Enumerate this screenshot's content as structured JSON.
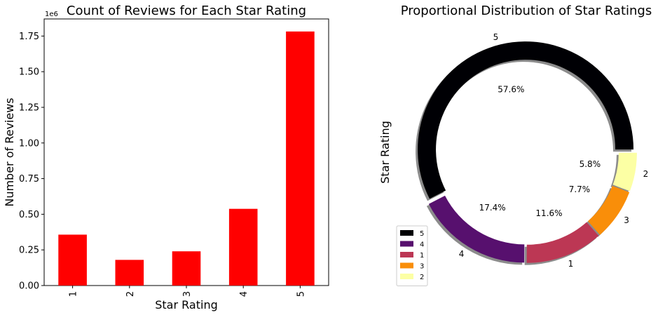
{
  "chart_data": [
    {
      "type": "bar",
      "title": "Count of Reviews for Each Star Rating",
      "xlabel": "Star Rating",
      "ylabel": "Number of Reviews",
      "y_offset_label": "1e6",
      "categories": [
        "1",
        "2",
        "3",
        "4",
        "5"
      ],
      "values": [
        357000,
        180000,
        240000,
        538000,
        1782000
      ],
      "ylim": [
        0,
        1870000
      ],
      "yticks": [
        0,
        250000,
        500000,
        750000,
        1000000,
        1250000,
        1500000,
        1750000
      ],
      "ytick_labels": [
        "0.00",
        "0.25",
        "0.50",
        "0.75",
        "1.00",
        "1.25",
        "1.50",
        "1.75"
      ],
      "color": "#ff0000",
      "grid": false
    },
    {
      "type": "pie",
      "style": "donut",
      "title": "Proportional Distribution of Star Ratings",
      "ylabel": "Star Rating",
      "start_angle": 0,
      "shadow": true,
      "legend_position": "lower-left",
      "slices": [
        {
          "label": "5",
          "pct_label": "57.6%",
          "value": 57.6,
          "color": "#000004"
        },
        {
          "label": "4",
          "pct_label": "17.4%",
          "value": 17.4,
          "color": "#57106e"
        },
        {
          "label": "1",
          "pct_label": "11.6%",
          "value": 11.6,
          "color": "#bc3754"
        },
        {
          "label": "3",
          "pct_label": "7.7%",
          "value": 7.7,
          "color": "#f98e09"
        },
        {
          "label": "2",
          "pct_label": "5.8%",
          "value": 5.8,
          "color": "#fcffa4"
        }
      ]
    }
  ]
}
